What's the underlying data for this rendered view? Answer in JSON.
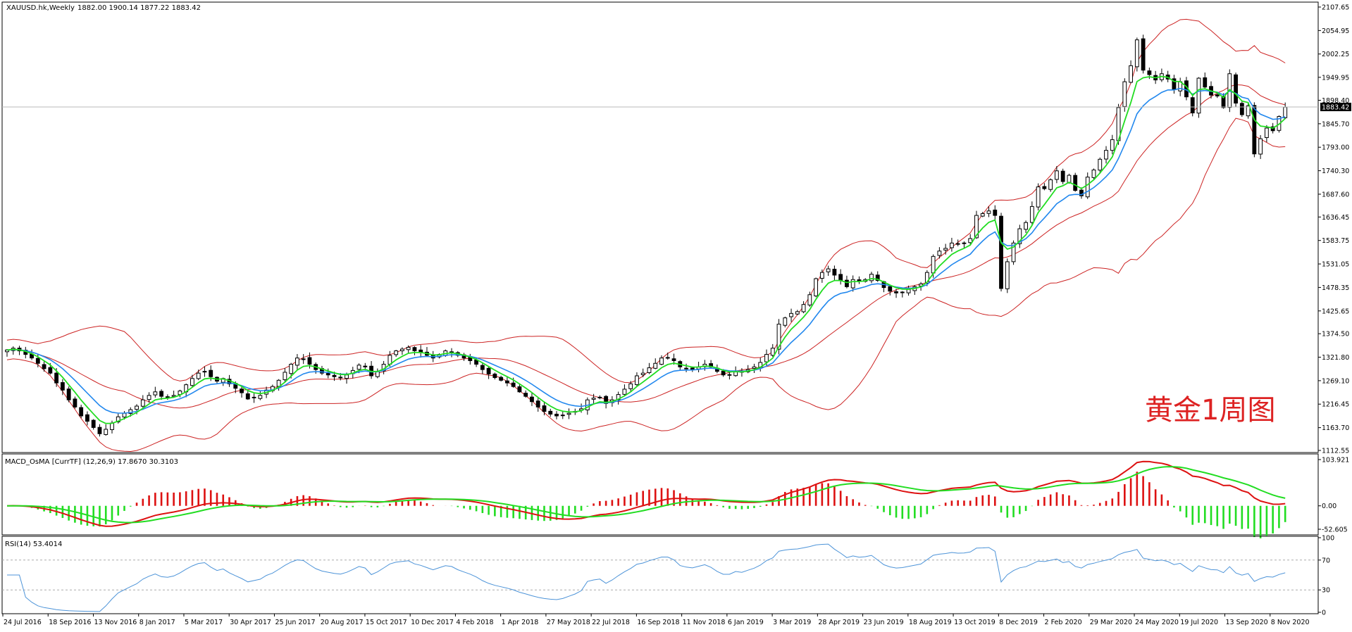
{
  "chart_data": {
    "type": "candlestick",
    "main": {
      "title": "XAUUSD.hk,Weekly",
      "ohlc_text": "1882.00 1900.14 1877.22 1883.42",
      "watermark": "黄金1周图",
      "current_price": "1883.42",
      "current_price_value": 1883.42,
      "ylim": [
        1112.55,
        2107.65
      ],
      "y_ticks": [
        "2107.65",
        "2054.95",
        "2002.25",
        "1949.95",
        "1898.40",
        "1845.70",
        "1793.00",
        "1740.30",
        "1687.60",
        "1636.45",
        "1583.75",
        "1531.05",
        "1478.35",
        "1425.65",
        "1374.50",
        "1321.80",
        "1269.10",
        "1216.45",
        "1163.70",
        "1112.55"
      ],
      "closes": [
        1338,
        1342,
        1336,
        1328,
        1320,
        1308,
        1296,
        1286,
        1264,
        1248,
        1226,
        1210,
        1190,
        1178,
        1164,
        1150,
        1160,
        1174,
        1188,
        1196,
        1204,
        1212,
        1226,
        1236,
        1244,
        1234,
        1232,
        1236,
        1246,
        1260,
        1274,
        1286,
        1290,
        1278,
        1268,
        1274,
        1262,
        1252,
        1242,
        1228,
        1232,
        1236,
        1248,
        1256,
        1270,
        1288,
        1306,
        1320,
        1318,
        1306,
        1294,
        1286,
        1282,
        1278,
        1276,
        1282,
        1292,
        1304,
        1300,
        1280,
        1290,
        1306,
        1326,
        1336,
        1340,
        1344,
        1336,
        1332,
        1326,
        1320,
        1328,
        1336,
        1334,
        1326,
        1320,
        1314,
        1306,
        1294,
        1284,
        1276,
        1270,
        1264,
        1256,
        1244,
        1234,
        1222,
        1210,
        1200,
        1194,
        1190,
        1192,
        1196,
        1200,
        1206,
        1226,
        1230,
        1232,
        1218,
        1226,
        1238,
        1250,
        1262,
        1280,
        1286,
        1298,
        1308,
        1320,
        1320,
        1314,
        1300,
        1296,
        1294,
        1300,
        1306,
        1300,
        1290,
        1282,
        1282,
        1290,
        1288,
        1294,
        1300,
        1310,
        1328,
        1342,
        1396,
        1410,
        1420,
        1424,
        1440,
        1462,
        1498,
        1512,
        1520,
        1506,
        1494,
        1480,
        1496,
        1492,
        1496,
        1508,
        1494,
        1478,
        1470,
        1466,
        1468,
        1474,
        1480,
        1486,
        1512,
        1548,
        1560,
        1566,
        1578,
        1576,
        1578,
        1588,
        1640,
        1644,
        1650,
        1640,
        1476,
        1536,
        1578,
        1610,
        1624,
        1660,
        1704,
        1700,
        1720,
        1740,
        1716,
        1730,
        1696,
        1684,
        1726,
        1742,
        1766,
        1786,
        1810,
        1882,
        1940,
        1976,
        2034,
        1966,
        1956,
        1944,
        1958,
        1946,
        1922,
        1940,
        1906,
        1870,
        1948,
        1928,
        1910,
        1908,
        1882,
        1958,
        1892,
        1866,
        1886,
        1778,
        1812,
        1836,
        1830,
        1862,
        1883
      ]
    },
    "macd": {
      "title": "MACD_OsMA [CurrTF] (12,26,9) 17.8670 30.3103",
      "y_ticks": [
        "103.921",
        "0.00",
        "-52.605"
      ],
      "ylim": [
        -52.605,
        103.921
      ],
      "series": [
        {
          "name": "MACD",
          "color": "#dd1111"
        },
        {
          "name": "Signal",
          "color": "#22dd22"
        },
        {
          "name": "OsMA",
          "color": "#dd1111"
        }
      ]
    },
    "rsi": {
      "title": "RSI(14) 53.4014",
      "period": 14,
      "levels": [
        30,
        70
      ],
      "y_ticks": [
        "100",
        "70",
        "30",
        "0"
      ],
      "ylim": [
        0,
        100
      ]
    },
    "x_labels": [
      "24 Jul 2016",
      "18 Sep 2016",
      "13 Nov 2016",
      "8 Jan 2017",
      "5 Mar 2017",
      "30 Apr 2017",
      "25 Jun 2017",
      "20 Aug 2017",
      "15 Oct 2017",
      "10 Dec 2017",
      "4 Feb 2018",
      "1 Apr 2018",
      "27 May 2018",
      "22 Jul 2018",
      "16 Sep 2018",
      "11 Nov 2018",
      "6 Jan 2019",
      "3 Mar 2019",
      "28 Apr 2019",
      "23 Jun 2019",
      "18 Aug 2019",
      "13 Oct 2019",
      "8 Dec 2019",
      "2 Feb 2020",
      "29 Mar 2020",
      "24 May 2020",
      "19 Jul 2020",
      "13 Sep 2020",
      "8 Nov 2020"
    ],
    "colors": {
      "ma_fast": "#22dd22",
      "ma_slow": "#2288ee",
      "bands": "#cc2222",
      "rsi": "#4c93d8",
      "watermark": "#dd2222",
      "candle": "#000000",
      "histogram_up": "#dd1111",
      "histogram_down": "#22dd22"
    }
  }
}
